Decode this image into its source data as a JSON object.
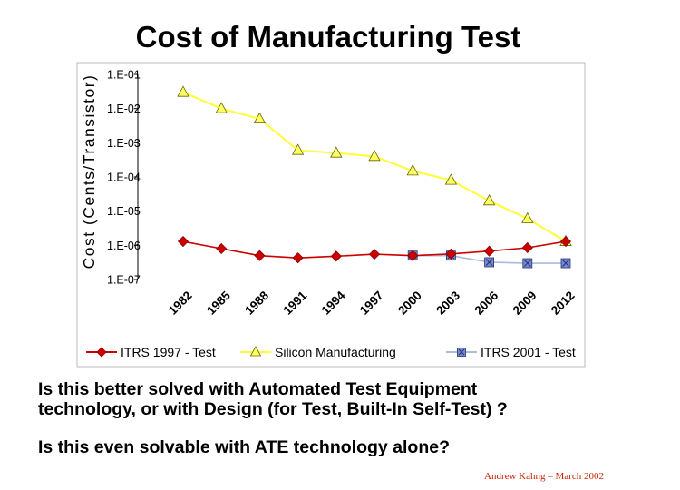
{
  "slide": {
    "title": "Cost of Manufacturing Test",
    "question1_line1": "Is this better solved with Automated Test Equipment",
    "question1_line2": "technology, or with Design (for Test, Built-In Self-Test) ?",
    "question2": "Is this even solvable with ATE technology alone?",
    "credit": "Andrew Kahng – March 2002",
    "credit_color": "#cc2200"
  },
  "chart_data": {
    "type": "line",
    "title": "Cost of Manufacturing Test",
    "xlabel": "",
    "ylabel": "Cost (Cents/Transistor)",
    "yscale": "log",
    "ylim": [
      1e-07,
      0.1
    ],
    "ytick_labels": [
      "1.E-01",
      "1.E-02",
      "1.E-03",
      "1.E-04",
      "1.E-05",
      "1.E-06",
      "1.E-07"
    ],
    "ytick_values": [
      0.1,
      0.01,
      0.001,
      0.0001,
      1e-05,
      1e-06,
      1e-07
    ],
    "x_range": [
      1982,
      2014
    ],
    "xtick_labels": [
      "1982",
      "1985",
      "1988",
      "1991",
      "1994",
      "1997",
      "2000",
      "2003",
      "2006",
      "2009",
      "2012"
    ],
    "xtick_values": [
      1982,
      1985,
      1988,
      1991,
      1994,
      1997,
      2000,
      2003,
      2006,
      2009,
      2012
    ],
    "legend_position": "bottom",
    "series": [
      {
        "name": "ITRS 1997 - Test",
        "color": "#cc0000",
        "marker": "diamond",
        "marker_color": "#cc0000",
        "x": [
          1982,
          1985,
          1988,
          1991,
          1994,
          1997,
          2000,
          2003,
          2006,
          2009,
          2012
        ],
        "values": [
          1.3e-06,
          8e-07,
          5e-07,
          4.3e-07,
          4.8e-07,
          5.5e-07,
          5e-07,
          5.6e-07,
          6.8e-07,
          8.5e-07,
          1.3e-06
        ]
      },
      {
        "name": "Silicon Manufacturing",
        "color": "#ffff33",
        "marker": "triangle",
        "marker_color": "#ffff66",
        "x": [
          1982,
          1985,
          1988,
          1991,
          1994,
          1997,
          2000,
          2003,
          2006,
          2009,
          2012
        ],
        "values": [
          0.03,
          0.01,
          0.005,
          0.0006,
          0.0005,
          0.0004,
          0.00015,
          8e-05,
          2e-05,
          6e-06,
          1.3e-06
        ]
      },
      {
        "name": "ITRS 2001 - Test",
        "color": "#aabbdd",
        "marker": "square-x",
        "marker_color": "#7788cc",
        "x": [
          2000,
          2003,
          2006,
          2009,
          2012
        ],
        "values": [
          5e-07,
          5e-07,
          3.2e-07,
          3e-07,
          3e-07
        ]
      }
    ]
  }
}
